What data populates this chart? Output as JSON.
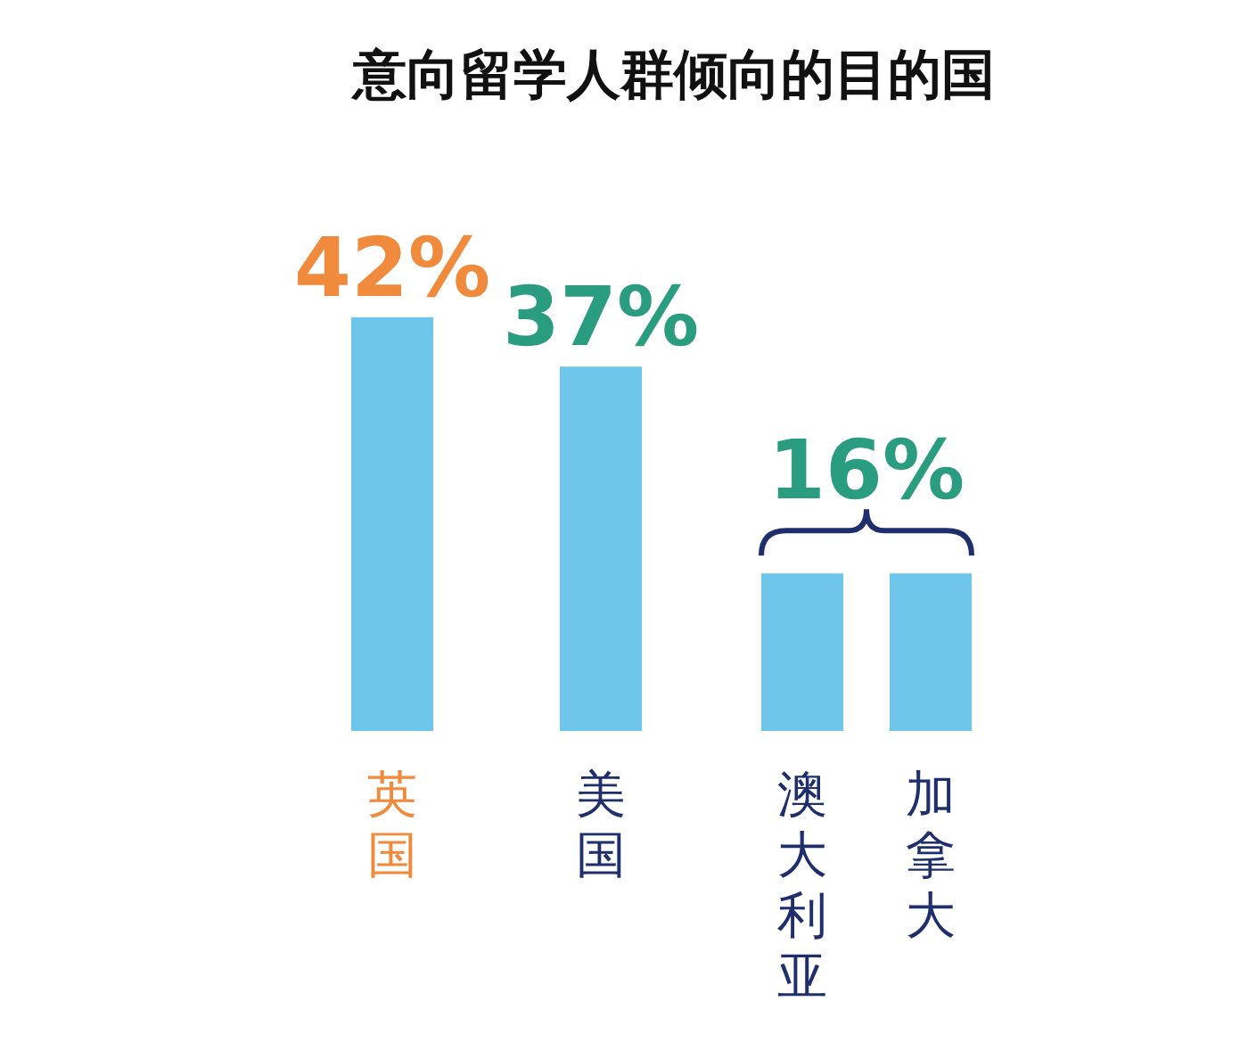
{
  "chart_data": {
    "type": "bar",
    "title": "意向留学人群倾向的目的国",
    "categories": [
      "英国",
      "美国",
      "澳大利亚",
      "加拿大"
    ],
    "values": [
      42,
      37,
      16,
      16
    ],
    "color": "#6ec6ea",
    "value_labels": [
      "42%",
      "37%",
      "16%",
      null
    ]
  }
}
